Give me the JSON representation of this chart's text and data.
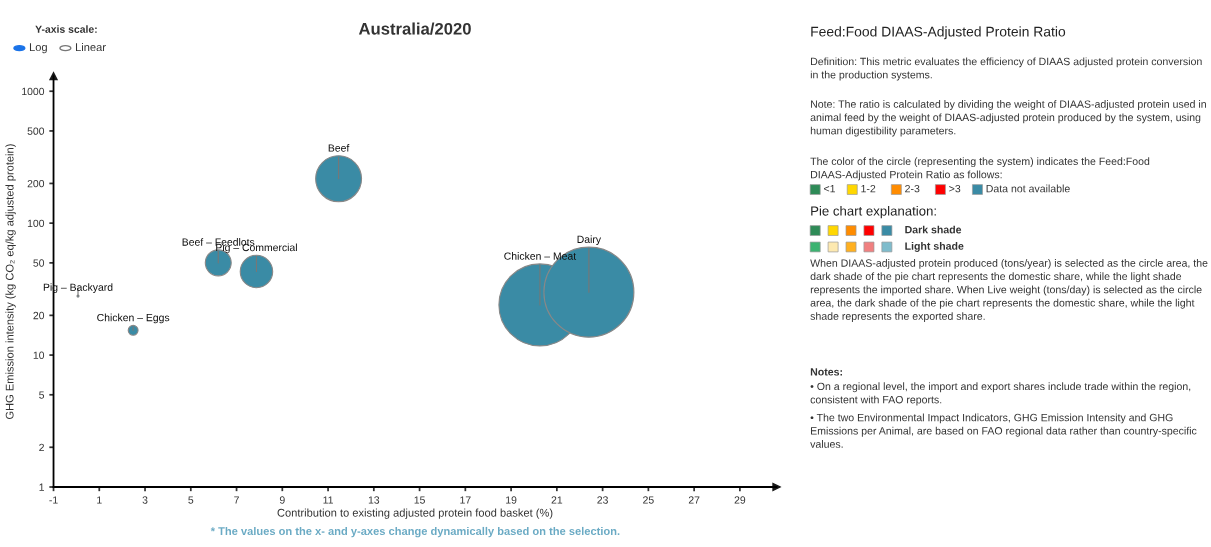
{
  "chart_data": [
    {
      "type": "bubble",
      "title": "Australia/2020",
      "xlabel": "Contribution to existing adjusted protein food basket (%)",
      "ylabel": "GHG Emission intensity (kg CO₂ eq/kg adjusted protein)",
      "x": [
        0.07,
        2.48,
        6.2,
        7.87,
        11.46,
        20.26,
        22.4
      ],
      "values": [
        28,
        15.4,
        50,
        43,
        217,
        24,
        30
      ],
      "sizes": [
        0.0005,
        0.012,
        0.083,
        0.13,
        0.26,
        0.83,
        1
      ],
      "colors": [
        "#3a8ba5",
        "#3a8ba5",
        "#3a8ba5",
        "#3a8ba5",
        "#3a8ba5",
        "#3a8ba5",
        "#3a8ba5"
      ],
      "log": true,
      "xlim": [
        -1,
        30.6
      ],
      "ylim": [
        1,
        1300
      ],
      "xticks": [
        -1,
        1,
        3,
        5,
        7,
        9,
        11,
        13,
        15,
        17,
        19,
        21,
        23,
        25,
        27,
        29
      ],
      "yticks": [
        1,
        2,
        5,
        10,
        20,
        50,
        100,
        200,
        500,
        1000
      ],
      "grid": false,
      "annotations": [
        {
          "text": "Pig – Backyard",
          "x": 0.07,
          "y": 28
        },
        {
          "text": "Chicken – Eggs",
          "x": 2.48,
          "y": 15.4
        },
        {
          "text": "Beef – Feedlots",
          "x": 6.2,
          "y": 50
        },
        {
          "text": "Pig – Commercial",
          "x": 7.87,
          "y": 43
        },
        {
          "text": "Beef",
          "x": 11.46,
          "y": 217
        },
        {
          "text": "Chicken – Meat",
          "x": 20.26,
          "y": 24
        },
        {
          "text": "Dairy",
          "x": 22.4,
          "y": 30
        },
        "Y-axis scale:",
        "Log",
        "Linear",
        "* The values on the x- and y-axes change dynamically based on the selection."
      ]
    },
    {
      "type": "other",
      "title": "Feed:Food DIAAS-Adjusted Protein Ratio",
      "annotations": [
        "Definition: This metric evaluates the efficiency of DIAAS adjusted protein conversion in the production systems.",
        "Note: The ratio is calculated by dividing the weight of DIAAS-adjusted protein used in animal feed by the weight of DIAAS-adjusted protein produced by the system, using human digestibility parameters.",
        "The color of the circle (representing the system) indicates the Feed:Food DIAAS-Adjusted Protein Ratio as follows:",
        "Pie chart explanation:",
        "Dark shade",
        "Light shade",
        "When DIAAS-adjusted protein produced (tons/year) is selected as the circle area, the dark shade of the pie chart represents the domestic share, while the light shade represents the imported share. When Live weight (tons/day) is selected as the circle area, the dark shade of the pie chart represents the domestic share, while the light shade represents the exported share.",
        "Notes:",
        "• On a regional level, the import and export shares include trade within the region, consistent with FAO reports.",
        "• The two Environmental Impact Indicators, GHG Emission Intensity and GHG Emissions per Animal, are based on FAO regional data rather than country-specific values."
      ],
      "categories": [
        "<1",
        "1-2",
        "2-3",
        ">3",
        "Data not available"
      ],
      "colors": [
        "#2e8b57",
        "#ffd700",
        "#ff8c00",
        "#ff0000",
        "#3a8ba5"
      ]
    }
  ]
}
